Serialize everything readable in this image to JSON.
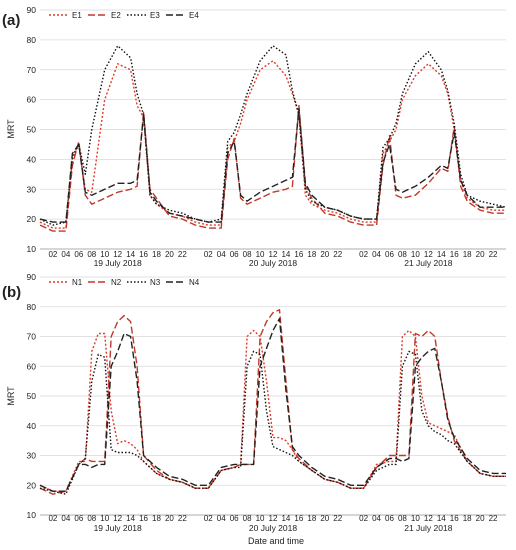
{
  "figure": {
    "x_title": "Date and time",
    "y_title": "MRT"
  },
  "chart_data": [
    {
      "type": "line",
      "panel_label": "(a)",
      "ylabel": "MRT",
      "xlabel": "",
      "ylim": [
        10,
        90
      ],
      "y_ticks": [
        "10",
        "20",
        "30",
        "40",
        "50",
        "60",
        "70",
        "80",
        "90"
      ],
      "grid": "horizontal",
      "legend_position": "top-left",
      "x_tick_labels": [
        "02",
        "04",
        "06",
        "08",
        "10",
        "12",
        "14",
        "16",
        "18",
        "20",
        "22",
        "02",
        "04",
        "06",
        "08",
        "10",
        "12",
        "14",
        "16",
        "18",
        "20",
        "22",
        "02",
        "04",
        "06",
        "08",
        "10",
        "12",
        "14",
        "16",
        "18",
        "20",
        "22"
      ],
      "date_labels": [
        "19 July 2018",
        "20 July 2018",
        "21 July 2018"
      ],
      "x_hours": [
        0,
        2,
        4,
        5,
        6,
        7,
        8,
        10,
        12,
        14,
        15,
        16,
        17,
        18,
        20,
        22,
        24,
        26,
        28,
        29,
        30,
        31,
        32,
        34,
        36,
        38,
        39,
        40,
        41,
        42,
        44,
        46,
        48,
        50,
        52,
        53,
        54,
        55,
        56,
        58,
        60,
        62,
        63,
        64,
        65,
        66,
        68,
        70,
        72
      ],
      "series": [
        {
          "name": "E1",
          "color": "#e03a2a",
          "dash": "2,2",
          "values": [
            19,
            17,
            17,
            40,
            45,
            30,
            29,
            60,
            72,
            70,
            58,
            54,
            28,
            25,
            22,
            21,
            19,
            18,
            18,
            44,
            46,
            52,
            60,
            70,
            73,
            68,
            62,
            55,
            28,
            25,
            23,
            22,
            20,
            19,
            19,
            42,
            46,
            50,
            60,
            68,
            72,
            68,
            62,
            50,
            33,
            27,
            24,
            23,
            23
          ]
        },
        {
          "name": "E2",
          "color": "#c0392b",
          "dash": "7,3",
          "values": [
            18,
            16,
            16,
            38,
            46,
            28,
            25,
            27,
            29,
            30,
            31,
            56,
            30,
            27,
            21,
            20,
            18,
            17,
            17,
            40,
            47,
            27,
            25,
            27,
            29,
            30,
            31,
            58,
            31,
            27,
            22,
            21,
            19,
            18,
            18,
            38,
            48,
            28,
            27,
            28,
            32,
            37,
            36,
            51,
            31,
            26,
            23,
            22,
            22
          ]
        },
        {
          "name": "E3",
          "color": "#111111",
          "dash": "1.5,2",
          "values": [
            20,
            18,
            19,
            41,
            45,
            35,
            50,
            70,
            78,
            74,
            62,
            55,
            28,
            25,
            23,
            22,
            20,
            19,
            20,
            46,
            49,
            55,
            62,
            73,
            78,
            75,
            63,
            55,
            30,
            26,
            24,
            23,
            21,
            20,
            20,
            44,
            47,
            52,
            62,
            72,
            76,
            70,
            63,
            52,
            35,
            28,
            26,
            25,
            24
          ]
        },
        {
          "name": "E4",
          "color": "#222222",
          "dash": "7,3",
          "values": [
            20,
            19,
            19,
            42,
            45,
            29,
            28,
            30,
            32,
            32,
            33,
            55,
            29,
            26,
            22,
            21,
            20,
            19,
            19,
            42,
            46,
            28,
            26,
            29,
            31,
            33,
            34,
            57,
            32,
            28,
            24,
            23,
            21,
            20,
            20,
            39,
            45,
            30,
            29,
            31,
            34,
            38,
            37,
            49,
            33,
            28,
            24,
            24,
            24
          ]
        }
      ]
    },
    {
      "type": "line",
      "panel_label": "(b)",
      "ylabel": "MRT",
      "xlabel": "Date and time",
      "ylim": [
        10,
        90
      ],
      "y_ticks": [
        "10",
        "20",
        "30",
        "40",
        "50",
        "60",
        "70",
        "80",
        "90"
      ],
      "grid": "horizontal",
      "legend_position": "top-left",
      "x_tick_labels": [
        "02",
        "04",
        "06",
        "08",
        "10",
        "12",
        "14",
        "16",
        "18",
        "20",
        "22",
        "02",
        "04",
        "06",
        "08",
        "10",
        "12",
        "14",
        "16",
        "18",
        "20",
        "22",
        "02",
        "04",
        "06",
        "08",
        "10",
        "12",
        "14",
        "16",
        "18",
        "20",
        "22"
      ],
      "date_labels": [
        "19 July 2018",
        "20 July 2018",
        "21 July 2018"
      ],
      "x_hours": [
        0,
        2,
        4,
        6,
        7,
        8,
        9,
        10,
        11,
        12,
        13,
        14,
        15,
        16,
        18,
        20,
        22,
        24,
        26,
        28,
        30,
        31,
        32,
        33,
        34,
        35,
        36,
        37,
        38,
        39,
        40,
        42,
        44,
        46,
        48,
        50,
        52,
        54,
        55,
        56,
        57,
        58,
        59,
        60,
        61,
        62,
        63,
        64,
        66,
        68,
        70,
        72
      ],
      "series": [
        {
          "name": "N1",
          "color": "#e03a2a",
          "dash": "2,2",
          "values": [
            20,
            18,
            18,
            28,
            28,
            65,
            71,
            71,
            45,
            34,
            35,
            34,
            32,
            28,
            24,
            22,
            21,
            19,
            19,
            25,
            26,
            27,
            70,
            72,
            70,
            55,
            36,
            36,
            35,
            32,
            28,
            25,
            22,
            21,
            19,
            19,
            27,
            28,
            28,
            70,
            72,
            70,
            50,
            41,
            40,
            39,
            38,
            37,
            28,
            24,
            23,
            23
          ]
        },
        {
          "name": "N2",
          "color": "#c0392b",
          "dash": "7,3",
          "values": [
            19,
            17,
            18,
            27,
            29,
            28,
            28,
            28,
            70,
            75,
            77,
            75,
            60,
            30,
            25,
            22,
            21,
            19,
            19,
            25,
            26,
            27,
            27,
            27,
            70,
            75,
            78,
            79,
            55,
            32,
            29,
            25,
            22,
            21,
            19,
            19,
            26,
            30,
            30,
            30,
            30,
            71,
            70,
            72,
            70,
            55,
            43,
            35,
            28,
            24,
            23,
            23
          ]
        },
        {
          "name": "N3",
          "color": "#111111",
          "dash": "1.5,2",
          "values": [
            19,
            18,
            17,
            27,
            29,
            55,
            64,
            63,
            32,
            31,
            31,
            31,
            30,
            28,
            24,
            22,
            21,
            19,
            19,
            25,
            26,
            26,
            60,
            65,
            64,
            45,
            33,
            32,
            31,
            30,
            28,
            25,
            22,
            21,
            19,
            19,
            25,
            27,
            27,
            60,
            65,
            64,
            45,
            40,
            38,
            37,
            35,
            34,
            28,
            24,
            23,
            23
          ]
        },
        {
          "name": "N4",
          "color": "#222222",
          "dash": "7,3",
          "values": [
            20,
            18,
            18,
            27,
            27,
            26,
            27,
            27,
            60,
            65,
            71,
            70,
            55,
            30,
            26,
            23,
            22,
            20,
            20,
            26,
            27,
            27,
            27,
            27,
            60,
            66,
            72,
            76,
            52,
            33,
            30,
            26,
            23,
            22,
            20,
            20,
            26,
            29,
            29,
            28,
            29,
            60,
            63,
            65,
            66,
            55,
            42,
            36,
            29,
            25,
            24,
            24
          ]
        }
      ]
    }
  ]
}
